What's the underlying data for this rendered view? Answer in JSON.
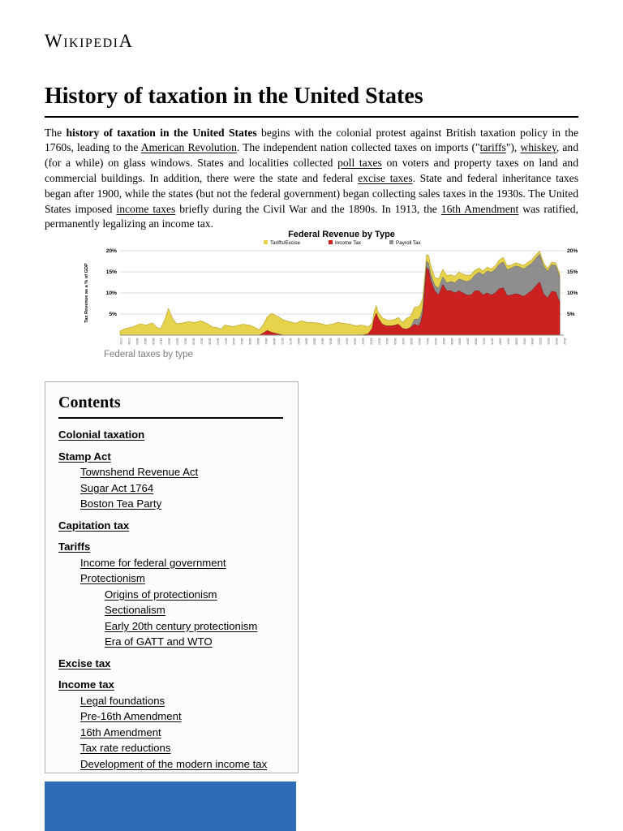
{
  "page": {
    "wordmark": "WikipediA",
    "title": "History of taxation in the United States"
  },
  "intro": {
    "segments": [
      {
        "t": "The ",
        "s": "p"
      },
      {
        "t": "history of taxation in the United States",
        "s": "b"
      },
      {
        "t": " begins with the colonial protest against British taxation policy in the 1760s, leading to the ",
        "s": "p"
      },
      {
        "t": "American Revolution",
        "s": "link"
      },
      {
        "t": ". The independent nation collected taxes on imports (\"",
        "s": "p"
      },
      {
        "t": "tariffs",
        "s": "link"
      },
      {
        "t": "\"), ",
        "s": "p"
      },
      {
        "t": "whiskey",
        "s": "link"
      },
      {
        "t": ", and (for a while) on glass windows. States and localities collected ",
        "s": "p"
      },
      {
        "t": "poll taxes",
        "s": "link"
      },
      {
        "t": " on voters and property taxes on land and commercial buildings. In addition, there were the state and federal ",
        "s": "p"
      },
      {
        "t": "excise taxes",
        "s": "link"
      },
      {
        "t": ". State and federal inheritance taxes began after 1900, while the states (but not the federal government) began collecting sales taxes in the 1930s. The United States imposed ",
        "s": "p"
      },
      {
        "t": "income taxes",
        "s": "link"
      },
      {
        "t": " briefly during the Civil War and the 1890s. In 1913, the ",
        "s": "p"
      },
      {
        "t": "16th Amendment",
        "s": "link"
      },
      {
        "t": " was ratified, permanently legalizing an income tax.",
        "s": "p"
      }
    ]
  },
  "figure": {
    "caption": "Federal taxes by type"
  },
  "chart_data": {
    "type": "area",
    "title": "Federal Revenue by Type",
    "ylabel": "Tax Revenue as a % of GDP",
    "xrange": [
      1792,
      2012
    ],
    "ylim": [
      0,
      21
    ],
    "yticks": [
      5,
      10,
      15,
      20
    ],
    "legend": [
      {
        "label": "Tariffs/Excise",
        "color": "#e7d24b"
      },
      {
        "label": "Income Tax",
        "color": "#cd2121"
      },
      {
        "label": "Payroll Tax",
        "color": "#8e8e8e"
      }
    ],
    "stack_order_bottom_to_top": [
      "Income Tax",
      "Payroll Tax",
      "Tariffs/Excise"
    ],
    "points_format": [
      "year",
      "tariffs_excise_pct_gdp",
      "income_tax_pct_gdp",
      "payroll_tax_pct_gdp"
    ],
    "points": [
      [
        1792,
        1.0,
        0,
        0
      ],
      [
        1795,
        1.6,
        0,
        0
      ],
      [
        1798,
        1.9,
        0,
        0
      ],
      [
        1800,
        2.3,
        0,
        0
      ],
      [
        1802,
        2.7,
        0,
        0
      ],
      [
        1805,
        2.4,
        0,
        0
      ],
      [
        1808,
        2.9,
        0,
        0
      ],
      [
        1810,
        1.9,
        0,
        0
      ],
      [
        1812,
        1.5,
        0,
        0
      ],
      [
        1814,
        3.4,
        0,
        0
      ],
      [
        1816,
        6.3,
        0,
        0
      ],
      [
        1818,
        4.0,
        0,
        0
      ],
      [
        1820,
        2.7,
        0,
        0
      ],
      [
        1823,
        2.9,
        0,
        0
      ],
      [
        1826,
        3.2,
        0,
        0
      ],
      [
        1829,
        3.0,
        0,
        0
      ],
      [
        1832,
        3.4,
        0,
        0
      ],
      [
        1835,
        2.8,
        0,
        0
      ],
      [
        1838,
        1.9,
        0,
        0
      ],
      [
        1840,
        1.8,
        0,
        0
      ],
      [
        1842,
        1.4,
        0,
        0
      ],
      [
        1844,
        2.4,
        0,
        0
      ],
      [
        1846,
        2.2,
        0,
        0
      ],
      [
        1848,
        2.0,
        0,
        0
      ],
      [
        1850,
        2.3,
        0,
        0
      ],
      [
        1853,
        2.6,
        0,
        0
      ],
      [
        1856,
        2.4,
        0,
        0
      ],
      [
        1859,
        1.8,
        0,
        0
      ],
      [
        1861,
        1.2,
        0,
        0
      ],
      [
        1863,
        2.0,
        0.5,
        0
      ],
      [
        1865,
        3.2,
        1.1,
        0
      ],
      [
        1867,
        4.4,
        0.7,
        0
      ],
      [
        1870,
        4.2,
        0.3,
        0
      ],
      [
        1873,
        3.6,
        0,
        0
      ],
      [
        1876,
        3.2,
        0,
        0
      ],
      [
        1879,
        2.8,
        0,
        0
      ],
      [
        1882,
        3.4,
        0,
        0
      ],
      [
        1885,
        3.0,
        0,
        0
      ],
      [
        1888,
        3.0,
        0,
        0
      ],
      [
        1891,
        2.8,
        0,
        0
      ],
      [
        1894,
        2.4,
        0,
        0
      ],
      [
        1897,
        2.6,
        0,
        0
      ],
      [
        1900,
        3.0,
        0,
        0
      ],
      [
        1903,
        2.8,
        0,
        0
      ],
      [
        1906,
        2.6,
        0,
        0
      ],
      [
        1909,
        2.2,
        0,
        0
      ],
      [
        1911,
        2.4,
        0,
        0
      ],
      [
        1913,
        2.2,
        0.1,
        0
      ],
      [
        1915,
        1.6,
        0.3,
        0
      ],
      [
        1917,
        1.2,
        1.6,
        0
      ],
      [
        1918,
        1.6,
        4.0,
        0
      ],
      [
        1919,
        1.8,
        5.2,
        0
      ],
      [
        1920,
        1.4,
        4.0,
        0
      ],
      [
        1922,
        1.6,
        2.6,
        0
      ],
      [
        1924,
        1.4,
        2.2,
        0
      ],
      [
        1926,
        1.3,
        2.2,
        0
      ],
      [
        1928,
        1.4,
        2.3,
        0
      ],
      [
        1930,
        1.6,
        2.6,
        0
      ],
      [
        1932,
        1.4,
        1.6,
        0
      ],
      [
        1934,
        2.6,
        1.4,
        0
      ],
      [
        1936,
        2.6,
        1.8,
        0
      ],
      [
        1938,
        2.8,
        2.6,
        1.2
      ],
      [
        1940,
        3.0,
        2.2,
        1.6
      ],
      [
        1941,
        2.8,
        3.0,
        1.6
      ],
      [
        1942,
        2.4,
        5.0,
        1.4
      ],
      [
        1943,
        1.8,
        10.0,
        1.6
      ],
      [
        1944,
        1.6,
        16.0,
        1.5
      ],
      [
        1945,
        1.8,
        15.5,
        1.5
      ],
      [
        1946,
        2.2,
        13.0,
        1.4
      ],
      [
        1948,
        1.9,
        10.5,
        1.3
      ],
      [
        1950,
        2.2,
        9.5,
        1.6
      ],
      [
        1952,
        1.8,
        12.0,
        1.8
      ],
      [
        1954,
        1.7,
        10.5,
        1.9
      ],
      [
        1956,
        1.6,
        10.5,
        2.2
      ],
      [
        1958,
        1.5,
        10.0,
        2.4
      ],
      [
        1960,
        1.6,
        10.5,
        2.8
      ],
      [
        1962,
        1.5,
        10.0,
        3.0
      ],
      [
        1964,
        1.4,
        9.5,
        3.2
      ],
      [
        1966,
        1.2,
        9.5,
        3.6
      ],
      [
        1968,
        1.1,
        10.5,
        3.8
      ],
      [
        1970,
        1.0,
        10.5,
        4.4
      ],
      [
        1972,
        0.9,
        9.5,
        4.8
      ],
      [
        1974,
        0.9,
        10.0,
        5.2
      ],
      [
        1976,
        0.8,
        9.5,
        5.4
      ],
      [
        1978,
        0.8,
        10.0,
        5.6
      ],
      [
        1980,
        1.0,
        11.0,
        5.8
      ],
      [
        1982,
        1.1,
        11.2,
        6.1
      ],
      [
        1984,
        0.9,
        9.3,
        6.2
      ],
      [
        1986,
        0.7,
        9.5,
        6.4
      ],
      [
        1988,
        0.7,
        9.8,
        6.6
      ],
      [
        1990,
        0.7,
        9.6,
        6.6
      ],
      [
        1992,
        0.8,
        9.2,
        6.5
      ],
      [
        1994,
        0.9,
        9.8,
        6.5
      ],
      [
        1996,
        0.8,
        10.5,
        6.5
      ],
      [
        1998,
        0.8,
        11.6,
        6.5
      ],
      [
        2000,
        0.7,
        12.6,
        6.6
      ],
      [
        2002,
        0.7,
        9.8,
        6.6
      ],
      [
        2004,
        0.7,
        8.8,
        6.3
      ],
      [
        2006,
        0.6,
        10.4,
        6.3
      ],
      [
        2008,
        0.6,
        10.2,
        6.3
      ],
      [
        2010,
        0.7,
        7.8,
        6.0
      ]
    ]
  },
  "contents": {
    "heading": "Contents",
    "items": [
      {
        "label": "Colonial taxation",
        "level": 1
      },
      {
        "label": "Stamp Act",
        "level": 1
      },
      {
        "label": "Townshend Revenue Act",
        "level": 2
      },
      {
        "label": "Sugar Act 1764",
        "level": 2
      },
      {
        "label": "Boston Tea Party",
        "level": 2
      },
      {
        "label": "Capitation tax",
        "level": 1
      },
      {
        "label": "Tariffs",
        "level": 1
      },
      {
        "label": "Income for federal government",
        "level": 2
      },
      {
        "label": "Protectionism",
        "level": 2
      },
      {
        "label": "Origins of protectionism",
        "level": 3
      },
      {
        "label": "Sectionalism",
        "level": 3
      },
      {
        "label": "Early 20th century protectionism",
        "level": 3
      },
      {
        "label": "Era of GATT and WTO",
        "level": 3
      },
      {
        "label": "Excise tax",
        "level": 1
      },
      {
        "label": "Income tax",
        "level": 1
      },
      {
        "label": "Legal foundations",
        "level": 2
      },
      {
        "label": "Pre-16th Amendment",
        "level": 2
      },
      {
        "label": "16th Amendment",
        "level": 2
      },
      {
        "label": "Tax rate reductions",
        "level": 2
      },
      {
        "label": "Development of the modern income tax",
        "level": 2
      }
    ]
  }
}
